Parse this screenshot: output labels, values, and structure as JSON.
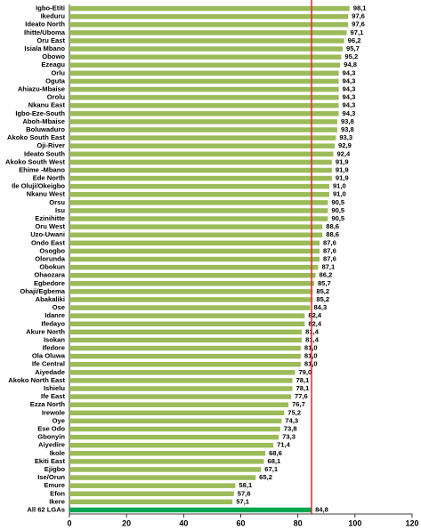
{
  "chart_data": {
    "type": "hbar",
    "categories": [
      "Igbo-Etiti",
      "Ikeduru",
      "Ideato North",
      "Ihitte/Uboma",
      "Oru East",
      "Isiala Mbano",
      "Obowo",
      "Ezeagu",
      "Orlu",
      "Oguta",
      "Ahiazu-Mbaise",
      "Orolu",
      "Nkanu East",
      "Igbo-Eze-South",
      "Aboh-Mbaise",
      "Boluwaduro",
      "Akoko South East",
      "Oji-River",
      "Ideato South",
      "Akoko South West",
      "Ehime -Mbano",
      "Ede North",
      "Ile Oluji/Okeigbo",
      "Nkanu West",
      "Orsu",
      "Isu",
      "Ezinihitte",
      "Oru West",
      "Uzo-Uwani",
      "Ondo East",
      "Osogbo",
      "Olorunda",
      "Obokun",
      "Ohaozara",
      "Egbedore",
      "Ohaji/Egbema",
      "Abakaliki",
      "Ose",
      "Idanre",
      "Ifedayo",
      "Akure North",
      "Isokan",
      "Ifedore",
      "Ola Oluwa",
      "Ife Central",
      "Aiyedade",
      "Akoko North East",
      "Ishielu",
      "Ife East",
      "Ezza North",
      "Irewole",
      "Oye",
      "Ese Odo",
      "Gbonyin",
      "Aiyedire",
      "Ikole",
      "Ekiti East",
      "Ejigbo",
      "Ise/Orun",
      "Emure",
      "Efon",
      "Ikere",
      "All 62 LGAs"
    ],
    "values": [
      98.1,
      97.6,
      97.6,
      97.1,
      96.2,
      95.7,
      95.2,
      94.8,
      94.3,
      94.3,
      94.3,
      94.3,
      94.3,
      94.3,
      93.8,
      93.8,
      93.3,
      92.9,
      92.4,
      91.9,
      91.9,
      91.9,
      91.0,
      91.0,
      90.5,
      90.5,
      90.5,
      88.6,
      88.6,
      87.6,
      87.6,
      87.6,
      87.1,
      86.2,
      85.7,
      85.2,
      85.2,
      84.3,
      82.4,
      82.4,
      81.4,
      81.4,
      81.0,
      81.0,
      81.0,
      79.0,
      78.1,
      78.1,
      77.6,
      76.7,
      75.2,
      74.3,
      73.8,
      73.3,
      71.4,
      68.6,
      68.1,
      67.1,
      65.2,
      58.1,
      57.6,
      57.1,
      84.8
    ],
    "value_labels": [
      "98,1",
      "97,6",
      "97,6",
      "97,1",
      "96,2",
      "95,7",
      "95,2",
      "94,8",
      "94,3",
      "94,3",
      "94,3",
      "94,3",
      "94,3",
      "94,3",
      "93,8",
      "93,8",
      "93,3",
      "92,9",
      "92,4",
      "91,9",
      "91,9",
      "91,9",
      "91,0",
      "91,0",
      "90,5",
      "90,5",
      "90,5",
      "88,6",
      "88,6",
      "87,6",
      "87,6",
      "87,6",
      "87,1",
      "86,2",
      "85,7",
      "85,2",
      "85,2",
      "84,3",
      "82,4",
      "82,4",
      "81,4",
      "81,4",
      "81,0",
      "81,0",
      "81,0",
      "79,0",
      "78,1",
      "78,1",
      "77,6",
      "76,7",
      "75,2",
      "74,3",
      "73,8",
      "73,3",
      "71,4",
      "68,6",
      "68,1",
      "67,1",
      "65,2",
      "58,1",
      "57,6",
      "57,1",
      "84,8"
    ],
    "colors": [
      "#9bbb59",
      "#9bbb59",
      "#9bbb59",
      "#9bbb59",
      "#9bbb59",
      "#9bbb59",
      "#9bbb59",
      "#9bbb59",
      "#9bbb59",
      "#9bbb59",
      "#9bbb59",
      "#9bbb59",
      "#9bbb59",
      "#9bbb59",
      "#9bbb59",
      "#9bbb59",
      "#9bbb59",
      "#9bbb59",
      "#9bbb59",
      "#9bbb59",
      "#9bbb59",
      "#9bbb59",
      "#9bbb59",
      "#9bbb59",
      "#9bbb59",
      "#9bbb59",
      "#9bbb59",
      "#9bbb59",
      "#9bbb59",
      "#9bbb59",
      "#9bbb59",
      "#9bbb59",
      "#9bbb59",
      "#9bbb59",
      "#9bbb59",
      "#9bbb59",
      "#9bbb59",
      "#9bbb59",
      "#9bbb59",
      "#9bbb59",
      "#9bbb59",
      "#9bbb59",
      "#9bbb59",
      "#9bbb59",
      "#9bbb59",
      "#9bbb59",
      "#9bbb59",
      "#9bbb59",
      "#9bbb59",
      "#9bbb59",
      "#9bbb59",
      "#9bbb59",
      "#9bbb59",
      "#9bbb59",
      "#9bbb59",
      "#9bbb59",
      "#9bbb59",
      "#9bbb59",
      "#9bbb59",
      "#9bbb59",
      "#9bbb59",
      "#9bbb59",
      "#00a651"
    ],
    "reference_line_color": "#e8262a",
    "xlim": [
      0,
      120
    ],
    "xticks": [
      0,
      20,
      40,
      60,
      80,
      100,
      120
    ]
  }
}
